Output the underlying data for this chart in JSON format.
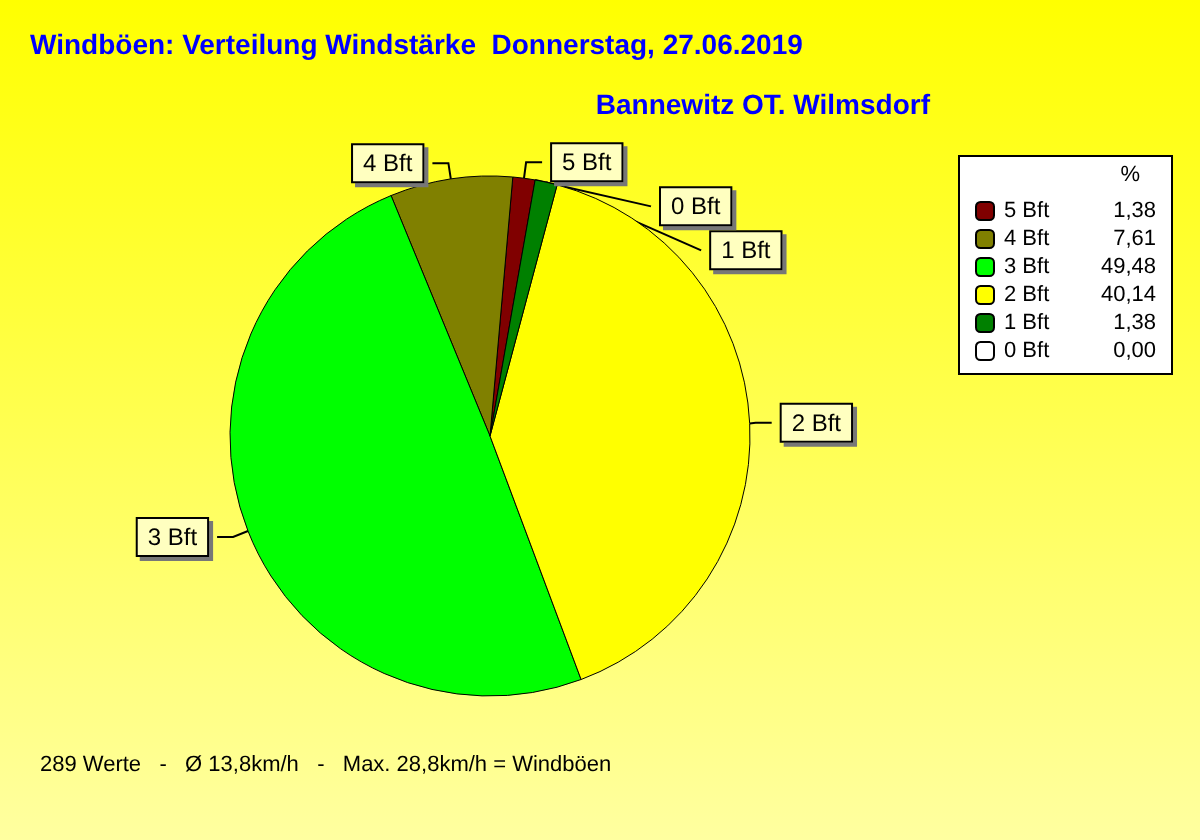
{
  "chart_data": {
    "type": "pie",
    "title": "Windböen: Verteilung Windstärke  Donnerstag, 27.06.2019",
    "subtitle": "Bannewitz OT. Wilmsdorf",
    "categories": [
      "5 Bft",
      "4 Bft",
      "3 Bft",
      "2 Bft",
      "1 Bft",
      "0 Bft"
    ],
    "values": [
      1.38,
      7.61,
      49.48,
      40.14,
      1.38,
      0.0
    ],
    "colors": [
      "#800000",
      "#808000",
      "#00ff00",
      "#ffff00",
      "#008000",
      "#ffffff"
    ],
    "value_labels": [
      "1,38",
      "7,61",
      "49,48",
      "40,14",
      "1,38",
      "0,00"
    ],
    "legend": "top right",
    "legend_title": "%",
    "annotations": [
      "289 Werte   -   Ø 13,8km/h   -   Max. 28,8km/h = Windböen"
    ]
  }
}
